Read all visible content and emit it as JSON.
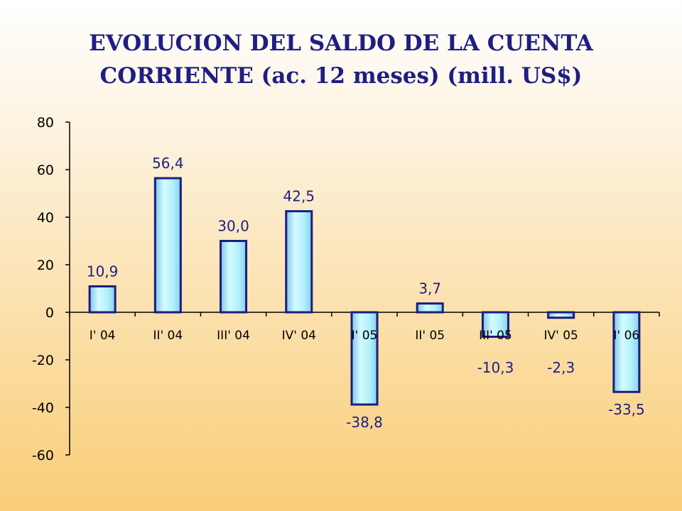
{
  "title": {
    "line1": "EVOLUCION DEL SALDO DE LA CUENTA",
    "line2": "CORRIENTE (ac. 12 meses) (mill. US$)"
  },
  "colors": {
    "title": "#1f1e82",
    "bar_fill": "#aeeefa",
    "bar_edge": "#1c1c80",
    "data_label": "#1f1e82"
  },
  "chart_data": {
    "type": "bar",
    "title": "EVOLUCION DEL SALDO DE LA CUENTA CORRIENTE (ac. 12 meses) (mill. US$)",
    "categories": [
      "I' 04",
      "II' 04",
      "III' 04",
      "IV' 04",
      "I' 05",
      "II' 05",
      "III' 05",
      "IV' 05",
      "I' 06"
    ],
    "values": [
      10.9,
      56.4,
      30.0,
      42.5,
      -38.8,
      3.7,
      -10.3,
      -2.3,
      -33.5
    ],
    "data_labels": [
      "10,9",
      "56,4",
      "30,0",
      "42,5",
      "-38,8",
      "3,7",
      "-10,3",
      "-2,3",
      "-33,5"
    ],
    "ylim": [
      -60,
      80
    ],
    "yticks": [
      80,
      60,
      40,
      20,
      0,
      -20,
      -40,
      -60
    ],
    "ytick_labels": [
      "80",
      "60",
      "40",
      "20",
      "0",
      "-20",
      "-40",
      "-60"
    ],
    "grid": false,
    "legend": "none"
  }
}
